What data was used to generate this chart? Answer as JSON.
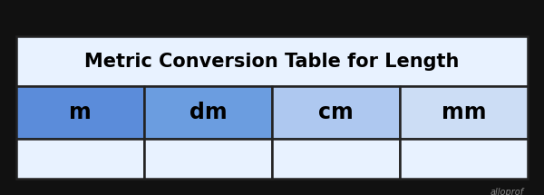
{
  "title": "Metric Conversion Table for Length",
  "columns": [
    "m",
    "dm",
    "cm",
    "mm"
  ],
  "col_colors": [
    "#5b8cda",
    "#6b9de0",
    "#aec8f0",
    "#ccddf5"
  ],
  "title_bg": "#e8f2ff",
  "row_bg": "#e8f2ff",
  "border_color": "#222222",
  "title_fontsize": 15,
  "col_fontsize": 17,
  "watermark": "alloprof",
  "bg_color": "#111111",
  "n_data_rows": 1
}
